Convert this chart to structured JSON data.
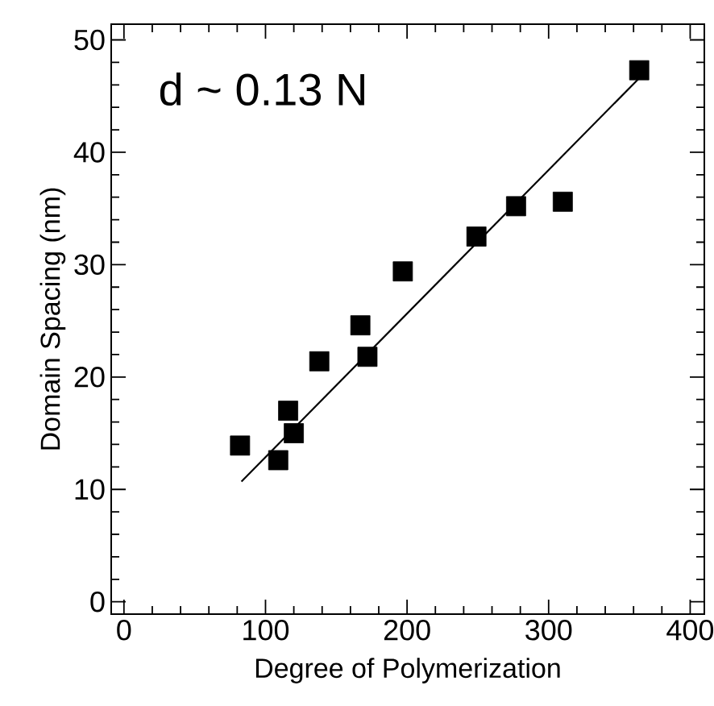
{
  "chart_data": {
    "type": "scatter",
    "xlabel": "Degree of Polymerization",
    "ylabel": "Domain Spacing (nm)",
    "annotations": [
      "d ~ 0.13 N"
    ],
    "xlim": [
      -9,
      410
    ],
    "ylim": [
      -1.1,
      51.4
    ],
    "xticks": [
      0,
      100,
      200,
      300,
      400
    ],
    "yticks": [
      0,
      10,
      20,
      30,
      40,
      50
    ],
    "marker": "square",
    "grid": false,
    "series": [
      {
        "color": "#000000",
        "x": [
          82,
          109,
          116,
          120,
          138,
          167,
          172,
          197,
          249,
          277,
          310,
          364
        ],
        "values": [
          13.9,
          12.6,
          17.0,
          15.0,
          21.4,
          24.6,
          21.8,
          29.4,
          32.5,
          35.2,
          35.6,
          47.3
        ]
      },
      {
        "type": "line",
        "color": "#000000",
        "marker": "none",
        "line_style": "solid",
        "x": [
          83,
          364
        ],
        "values": [
          10.7,
          46.6
        ]
      }
    ]
  }
}
